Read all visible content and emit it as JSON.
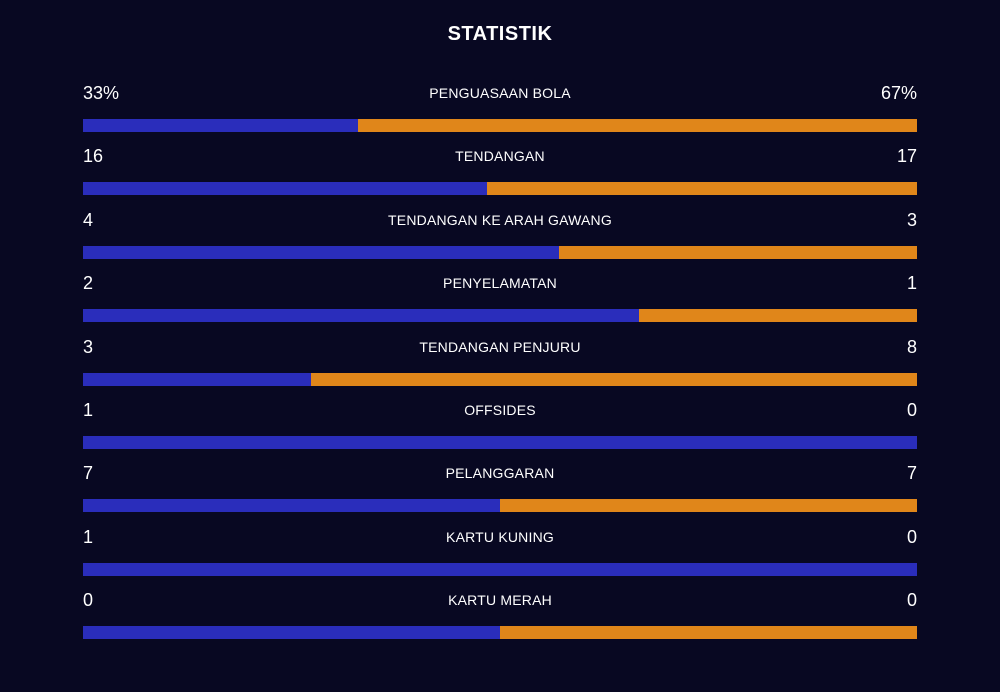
{
  "header": {
    "title": "STATISTIK"
  },
  "colors": {
    "home": "#2a2dbb",
    "away": "#e0861a",
    "background": "#080822"
  },
  "stats": [
    {
      "label": "PENGUASAAN BOLA",
      "home": "33%",
      "away": "67%",
      "home_share": 0.33
    },
    {
      "label": "TENDANGAN",
      "home": "16",
      "away": "17",
      "home_share": 0.485
    },
    {
      "label": "TENDANGAN KE ARAH GAWANG",
      "home": "4",
      "away": "3",
      "home_share": 0.571
    },
    {
      "label": "PENYELAMATAN",
      "home": "2",
      "away": "1",
      "home_share": 0.667
    },
    {
      "label": "TENDANGAN PENJURU",
      "home": "3",
      "away": "8",
      "home_share": 0.273
    },
    {
      "label": "OFFSIDES",
      "home": "1",
      "away": "0",
      "home_share": 1.0
    },
    {
      "label": "PELANGGARAN",
      "home": "7",
      "away": "7",
      "home_share": 0.5
    },
    {
      "label": "KARTU KUNING",
      "home": "1",
      "away": "0",
      "home_share": 1.0
    },
    {
      "label": "KARTU MERAH",
      "home": "0",
      "away": "0",
      "home_share": 0.5
    }
  ]
}
